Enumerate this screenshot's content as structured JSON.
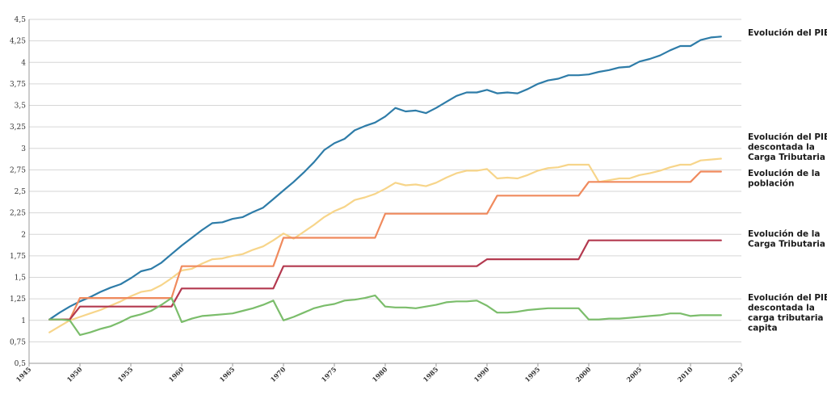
{
  "chart_data": {
    "type": "line",
    "xlim": [
      1945,
      2015
    ],
    "ylim": [
      0.5,
      4.5
    ],
    "x_ticks": [
      1945,
      1950,
      1955,
      1960,
      1965,
      1970,
      1975,
      1980,
      1985,
      1990,
      1995,
      2000,
      2005,
      2010,
      2015
    ],
    "y_ticks": [
      0.5,
      0.75,
      1,
      1.25,
      1.5,
      1.75,
      2,
      2.25,
      2.5,
      2.75,
      3,
      3.25,
      3.5,
      3.75,
      4,
      4.25,
      4.5
    ],
    "y_tick_labels": [
      "0,5",
      "0,75",
      "1",
      "1,25",
      "1,5",
      "1,75",
      "2",
      "2,25",
      "2,5",
      "2,75",
      "3",
      "3,25",
      "3,5",
      "3,75",
      "4",
      "4,25",
      "4,5"
    ],
    "grid": true,
    "legend_position": "right",
    "series": [
      {
        "name": "Evolución del PIB",
        "color": "#2e7ca8",
        "step": false,
        "points": [
          [
            1947,
            1.01
          ],
          [
            1948,
            1.09
          ],
          [
            1949,
            1.16
          ],
          [
            1950,
            1.22
          ],
          [
            1951,
            1.27
          ],
          [
            1952,
            1.33
          ],
          [
            1953,
            1.38
          ],
          [
            1954,
            1.42
          ],
          [
            1955,
            1.49
          ],
          [
            1956,
            1.57
          ],
          [
            1957,
            1.6
          ],
          [
            1958,
            1.67
          ],
          [
            1959,
            1.77
          ],
          [
            1960,
            1.87
          ],
          [
            1961,
            1.96
          ],
          [
            1962,
            2.05
          ],
          [
            1963,
            2.13
          ],
          [
            1964,
            2.14
          ],
          [
            1965,
            2.18
          ],
          [
            1966,
            2.2
          ],
          [
            1967,
            2.26
          ],
          [
            1968,
            2.31
          ],
          [
            1969,
            2.41
          ],
          [
            1970,
            2.51
          ],
          [
            1971,
            2.61
          ],
          [
            1972,
            2.72
          ],
          [
            1973,
            2.84
          ],
          [
            1974,
            2.98
          ],
          [
            1975,
            3.06
          ],
          [
            1976,
            3.11
          ],
          [
            1977,
            3.21
          ],
          [
            1978,
            3.26
          ],
          [
            1979,
            3.3
          ],
          [
            1980,
            3.37
          ],
          [
            1981,
            3.47
          ],
          [
            1982,
            3.43
          ],
          [
            1983,
            3.44
          ],
          [
            1984,
            3.41
          ],
          [
            1985,
            3.47
          ],
          [
            1986,
            3.54
          ],
          [
            1987,
            3.61
          ],
          [
            1988,
            3.65
          ],
          [
            1989,
            3.65
          ],
          [
            1990,
            3.68
          ],
          [
            1991,
            3.64
          ],
          [
            1992,
            3.65
          ],
          [
            1993,
            3.64
          ],
          [
            1994,
            3.69
          ],
          [
            1995,
            3.75
          ],
          [
            1996,
            3.79
          ],
          [
            1997,
            3.81
          ],
          [
            1998,
            3.85
          ],
          [
            1999,
            3.85
          ],
          [
            2000,
            3.86
          ],
          [
            2001,
            3.89
          ],
          [
            2002,
            3.91
          ],
          [
            2003,
            3.94
          ],
          [
            2004,
            3.95
          ],
          [
            2005,
            4.01
          ],
          [
            2006,
            4.04
          ],
          [
            2007,
            4.08
          ],
          [
            2008,
            4.14
          ],
          [
            2009,
            4.19
          ],
          [
            2010,
            4.19
          ],
          [
            2011,
            4.26
          ],
          [
            2012,
            4.29
          ],
          [
            2013,
            4.3
          ]
        ]
      },
      {
        "name": "Evolución del PIB descontada la Carga Tributaria",
        "color": "#f7d58a",
        "step": false,
        "points": [
          [
            1947,
            0.86
          ],
          [
            1948,
            0.93
          ],
          [
            1949,
            1.0
          ],
          [
            1950,
            1.04
          ],
          [
            1951,
            1.08
          ],
          [
            1952,
            1.12
          ],
          [
            1953,
            1.17
          ],
          [
            1954,
            1.22
          ],
          [
            1955,
            1.28
          ],
          [
            1956,
            1.33
          ],
          [
            1957,
            1.35
          ],
          [
            1958,
            1.41
          ],
          [
            1959,
            1.49
          ],
          [
            1960,
            1.58
          ],
          [
            1961,
            1.6
          ],
          [
            1962,
            1.66
          ],
          [
            1963,
            1.71
          ],
          [
            1964,
            1.72
          ],
          [
            1965,
            1.75
          ],
          [
            1966,
            1.77
          ],
          [
            1967,
            1.82
          ],
          [
            1968,
            1.86
          ],
          [
            1969,
            1.93
          ],
          [
            1970,
            2.01
          ],
          [
            1971,
            1.95
          ],
          [
            1972,
            2.03
          ],
          [
            1973,
            2.11
          ],
          [
            1974,
            2.2
          ],
          [
            1975,
            2.27
          ],
          [
            1976,
            2.32
          ],
          [
            1977,
            2.4
          ],
          [
            1978,
            2.43
          ],
          [
            1979,
            2.47
          ],
          [
            1980,
            2.53
          ],
          [
            1981,
            2.6
          ],
          [
            1982,
            2.57
          ],
          [
            1983,
            2.58
          ],
          [
            1984,
            2.56
          ],
          [
            1985,
            2.6
          ],
          [
            1986,
            2.66
          ],
          [
            1987,
            2.71
          ],
          [
            1988,
            2.74
          ],
          [
            1989,
            2.74
          ],
          [
            1990,
            2.76
          ],
          [
            1991,
            2.65
          ],
          [
            1992,
            2.66
          ],
          [
            1993,
            2.65
          ],
          [
            1994,
            2.69
          ],
          [
            1995,
            2.74
          ],
          [
            1996,
            2.77
          ],
          [
            1997,
            2.78
          ],
          [
            1998,
            2.81
          ],
          [
            1999,
            2.81
          ],
          [
            2000,
            2.81
          ],
          [
            2001,
            2.61
          ],
          [
            2002,
            2.63
          ],
          [
            2003,
            2.65
          ],
          [
            2004,
            2.65
          ],
          [
            2005,
            2.69
          ],
          [
            2006,
            2.71
          ],
          [
            2007,
            2.74
          ],
          [
            2008,
            2.78
          ],
          [
            2009,
            2.81
          ],
          [
            2010,
            2.81
          ],
          [
            2011,
            2.86
          ],
          [
            2012,
            2.87
          ],
          [
            2013,
            2.88
          ]
        ]
      },
      {
        "name": "Evolución de la población",
        "color": "#f08a5d",
        "step": true,
        "points": [
          [
            1947,
            1.01
          ],
          [
            1949,
            1.01
          ],
          [
            1950,
            1.26
          ],
          [
            1959,
            1.26
          ],
          [
            1960,
            1.63
          ],
          [
            1969,
            1.63
          ],
          [
            1970,
            1.96
          ],
          [
            1979,
            1.96
          ],
          [
            1980,
            2.24
          ],
          [
            1990,
            2.24
          ],
          [
            1991,
            2.45
          ],
          [
            1999,
            2.45
          ],
          [
            2000,
            2.61
          ],
          [
            2010,
            2.61
          ],
          [
            2011,
            2.73
          ],
          [
            2013,
            2.73
          ]
        ]
      },
      {
        "name": "Evolución de la Carga Tributaria",
        "color": "#b3394f",
        "step": true,
        "points": [
          [
            1947,
            1.01
          ],
          [
            1949,
            1.01
          ],
          [
            1950,
            1.16
          ],
          [
            1959,
            1.16
          ],
          [
            1960,
            1.37
          ],
          [
            1969,
            1.37
          ],
          [
            1970,
            1.63
          ],
          [
            1989,
            1.63
          ],
          [
            1990,
            1.71
          ],
          [
            1999,
            1.71
          ],
          [
            2000,
            1.93
          ],
          [
            2013,
            1.93
          ]
        ]
      },
      {
        "name": "Evolución del PIB descontada la carga tributaria per capita",
        "color": "#7bbd6b",
        "step": false,
        "points": [
          [
            1947,
            1.01
          ],
          [
            1948,
            1.01
          ],
          [
            1949,
            1.0
          ],
          [
            1950,
            0.83
          ],
          [
            1951,
            0.86
          ],
          [
            1952,
            0.9
          ],
          [
            1953,
            0.93
          ],
          [
            1954,
            0.98
          ],
          [
            1955,
            1.04
          ],
          [
            1956,
            1.07
          ],
          [
            1957,
            1.11
          ],
          [
            1958,
            1.18
          ],
          [
            1959,
            1.26
          ],
          [
            1960,
            0.98
          ],
          [
            1961,
            1.02
          ],
          [
            1962,
            1.05
          ],
          [
            1963,
            1.06
          ],
          [
            1964,
            1.07
          ],
          [
            1965,
            1.08
          ],
          [
            1966,
            1.11
          ],
          [
            1967,
            1.14
          ],
          [
            1968,
            1.18
          ],
          [
            1969,
            1.23
          ],
          [
            1970,
            1.0
          ],
          [
            1971,
            1.04
          ],
          [
            1972,
            1.09
          ],
          [
            1973,
            1.14
          ],
          [
            1974,
            1.17
          ],
          [
            1975,
            1.19
          ],
          [
            1976,
            1.23
          ],
          [
            1977,
            1.24
          ],
          [
            1978,
            1.26
          ],
          [
            1979,
            1.29
          ],
          [
            1980,
            1.16
          ],
          [
            1981,
            1.15
          ],
          [
            1982,
            1.15
          ],
          [
            1983,
            1.14
          ],
          [
            1984,
            1.16
          ],
          [
            1985,
            1.18
          ],
          [
            1986,
            1.21
          ],
          [
            1987,
            1.22
          ],
          [
            1988,
            1.22
          ],
          [
            1989,
            1.23
          ],
          [
            1990,
            1.17
          ],
          [
            1991,
            1.09
          ],
          [
            1992,
            1.09
          ],
          [
            1993,
            1.1
          ],
          [
            1994,
            1.12
          ],
          [
            1995,
            1.13
          ],
          [
            1996,
            1.14
          ],
          [
            1997,
            1.14
          ],
          [
            1998,
            1.14
          ],
          [
            1999,
            1.14
          ],
          [
            2000,
            1.01
          ],
          [
            2001,
            1.01
          ],
          [
            2002,
            1.02
          ],
          [
            2003,
            1.02
          ],
          [
            2004,
            1.03
          ],
          [
            2005,
            1.04
          ],
          [
            2006,
            1.05
          ],
          [
            2007,
            1.06
          ],
          [
            2008,
            1.08
          ],
          [
            2009,
            1.08
          ],
          [
            2010,
            1.05
          ],
          [
            2011,
            1.06
          ],
          [
            2012,
            1.06
          ],
          [
            2013,
            1.06
          ]
        ]
      }
    ]
  },
  "legend": [
    {
      "key": "pib",
      "color": "#2e7ca8",
      "lines": [
        "Evolución del PIB"
      ]
    },
    {
      "key": "pib-descontada",
      "color": "#f7d58a",
      "lines": [
        "Evolución del PIB",
        "descontada la",
        "Carga Tributaria"
      ]
    },
    {
      "key": "poblacion",
      "color": "#f08a5d",
      "lines": [
        "Evolución de la",
        "población"
      ]
    },
    {
      "key": "carga",
      "color": "#b3394f",
      "lines": [
        "Evolución de la",
        "Carga Tributaria"
      ]
    },
    {
      "key": "per-capita",
      "color": "#7bbd6b",
      "lines": [
        "Evolución del PIB",
        "descontada la",
        "carga tributaria per",
        "capita"
      ]
    }
  ]
}
